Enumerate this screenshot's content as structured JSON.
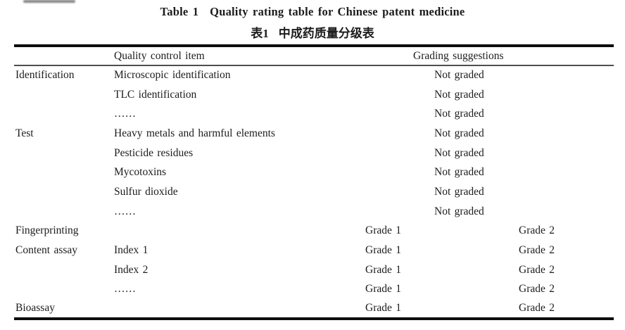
{
  "title": {
    "en_label": "Table 1",
    "en_text": "Quality rating table for Chinese patent medicine",
    "zh_label": "表1",
    "zh_text": "中成药质量分级表"
  },
  "table": {
    "headers": {
      "item": "Quality control item",
      "grading": "Grading suggestions"
    },
    "rows": [
      {
        "category": "Identification",
        "item": "Microscopic identification",
        "grading": "Not graded"
      },
      {
        "category": "",
        "item": "TLC identification",
        "grading": "Not graded"
      },
      {
        "category": "",
        "item": "……",
        "grading": "Not graded"
      },
      {
        "category": "Test",
        "item": "Heavy metals and harmful elements",
        "grading": "Not graded"
      },
      {
        "category": "",
        "item": "Pesticide residues",
        "grading": "Not graded"
      },
      {
        "category": "",
        "item": "Mycotoxins",
        "grading": "Not graded"
      },
      {
        "category": "",
        "item": "Sulfur dioxide",
        "grading": "Not graded"
      },
      {
        "category": "",
        "item": "……",
        "grading": "Not graded"
      },
      {
        "category": "Fingerprinting",
        "item": "",
        "grade1": "Grade 1",
        "grade2": "Grade 2"
      },
      {
        "category": "Content assay",
        "item": "Index 1",
        "grade1": "Grade 1",
        "grade2": "Grade 2"
      },
      {
        "category": "",
        "item": "Index 2",
        "grade1": "Grade 1",
        "grade2": "Grade 2"
      },
      {
        "category": "",
        "item": "……",
        "grade1": "Grade 1",
        "grade2": "Grade 2"
      },
      {
        "category": "Bioassay",
        "item": "",
        "grade1": "Grade 1",
        "grade2": "Grade 2"
      }
    ]
  },
  "colors": {
    "background": "#ffffff",
    "text": "#1c1c1c",
    "thick_rule": "#0d0d0d",
    "thin_rule": "#4e4e4e"
  }
}
